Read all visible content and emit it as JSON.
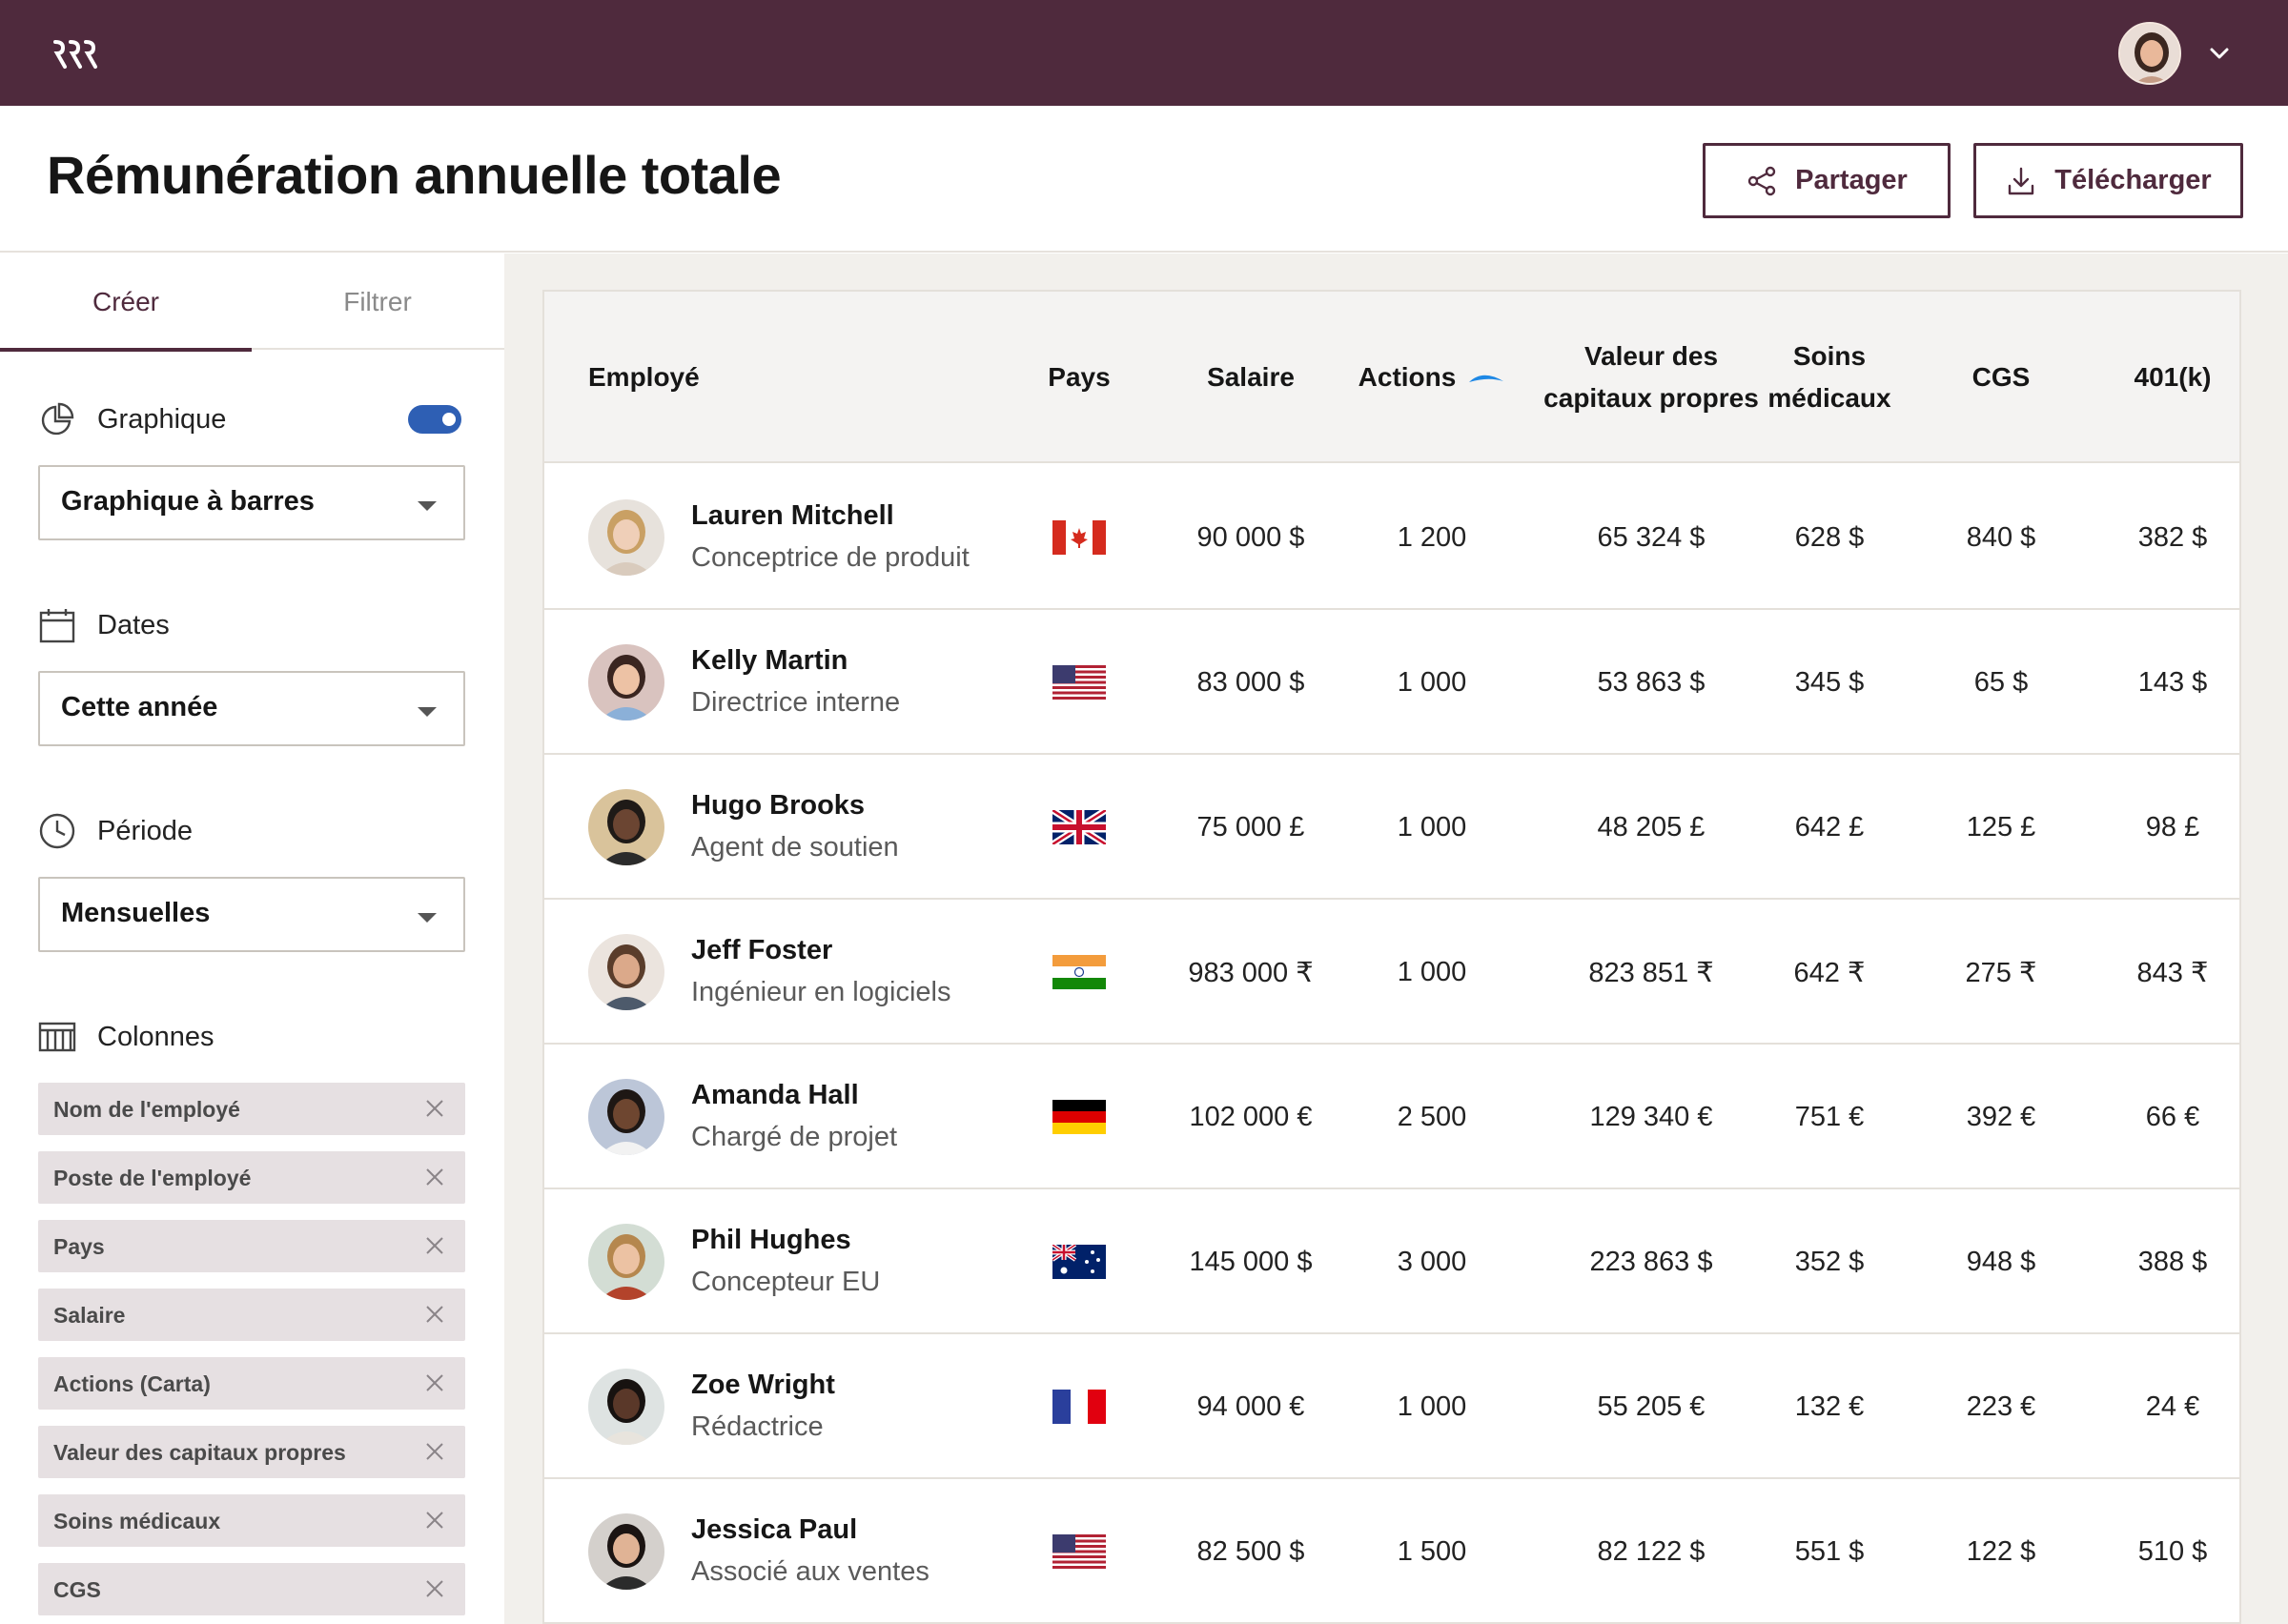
{
  "app": {
    "title": "Rémunération annuelle totale",
    "share_label": "Partager",
    "download_label": "Télécharger",
    "brand_color": "#4f2a3d",
    "toggle_color": "#2e5fb4"
  },
  "sidebar": {
    "tabs": [
      {
        "label": "Créer",
        "active": true
      },
      {
        "label": "Filtrer",
        "active": false
      }
    ],
    "chart": {
      "label": "Graphique",
      "enabled": true,
      "select_value": "Graphique à barres"
    },
    "dates": {
      "label": "Dates",
      "select_value": "Cette année"
    },
    "period": {
      "label": "Période",
      "select_value": "Mensuelles"
    },
    "columns": {
      "label": "Colonnes",
      "chips": [
        "Nom de l'employé",
        "Poste de l'employé",
        "Pays",
        "Salaire",
        "Actions (Carta)",
        "Valeur des capitaux propres",
        "Soins médicaux",
        "CGS"
      ]
    }
  },
  "table": {
    "headers": {
      "employee": "Employé",
      "country": "Pays",
      "salary": "Salaire",
      "actions": "Actions",
      "equity": "Valeur des capitaux propres",
      "medical": "Soins médicaux",
      "cgs": "CGS",
      "k401": "401(k)"
    },
    "rows": [
      {
        "name": "Lauren Mitchell",
        "role": "Conceptrice de produit",
        "flag": "canada",
        "salary": "90 000 $",
        "actions": "1 200",
        "equity": "65 324 $",
        "medical": "628 $",
        "cgs": "840 $",
        "k401": "382 $"
      },
      {
        "name": "Kelly Martin",
        "role": "Directrice interne",
        "flag": "usa",
        "salary": "83 000 $",
        "actions": "1 000",
        "equity": "53 863 $",
        "medical": "345 $",
        "cgs": "65 $",
        "k401": "143 $"
      },
      {
        "name": "Hugo Brooks",
        "role": "Agent de soutien",
        "flag": "uk",
        "salary": "75 000 £",
        "actions": "1 000",
        "equity": "48 205 £",
        "medical": "642 £",
        "cgs": "125 £",
        "k401": "98 £"
      },
      {
        "name": "Jeff Foster",
        "role": "Ingénieur en logiciels",
        "flag": "india",
        "salary": "983 000 ₹",
        "actions": "1 000",
        "equity": "823 851 ₹",
        "medical": "642 ₹",
        "cgs": "275 ₹",
        "k401": "843 ₹"
      },
      {
        "name": "Amanda Hall",
        "role": "Chargé de projet",
        "flag": "germany",
        "salary": "102 000 €",
        "actions": "2 500",
        "equity": "129 340 €",
        "medical": "751 €",
        "cgs": "392 €",
        "k401": "66 €"
      },
      {
        "name": "Phil Hughes",
        "role": "Concepteur EU",
        "flag": "australia",
        "salary": "145 000 $",
        "actions": "3 000",
        "equity": "223 863 $",
        "medical": "352 $",
        "cgs": "948 $",
        "k401": "388 $"
      },
      {
        "name": "Zoe Wright",
        "role": "Rédactrice",
        "flag": "france",
        "salary": "94 000 €",
        "actions": "1 000",
        "equity": "55 205 €",
        "medical": "132 €",
        "cgs": "223 €",
        "k401": "24 €"
      },
      {
        "name": "Jessica Paul",
        "role": "Associé aux ventes",
        "flag": "usa",
        "salary": "82 500 $",
        "actions": "1 500",
        "equity": "82 122 $",
        "medical": "551 $",
        "cgs": "122 $",
        "k401": "510 $"
      }
    ]
  }
}
